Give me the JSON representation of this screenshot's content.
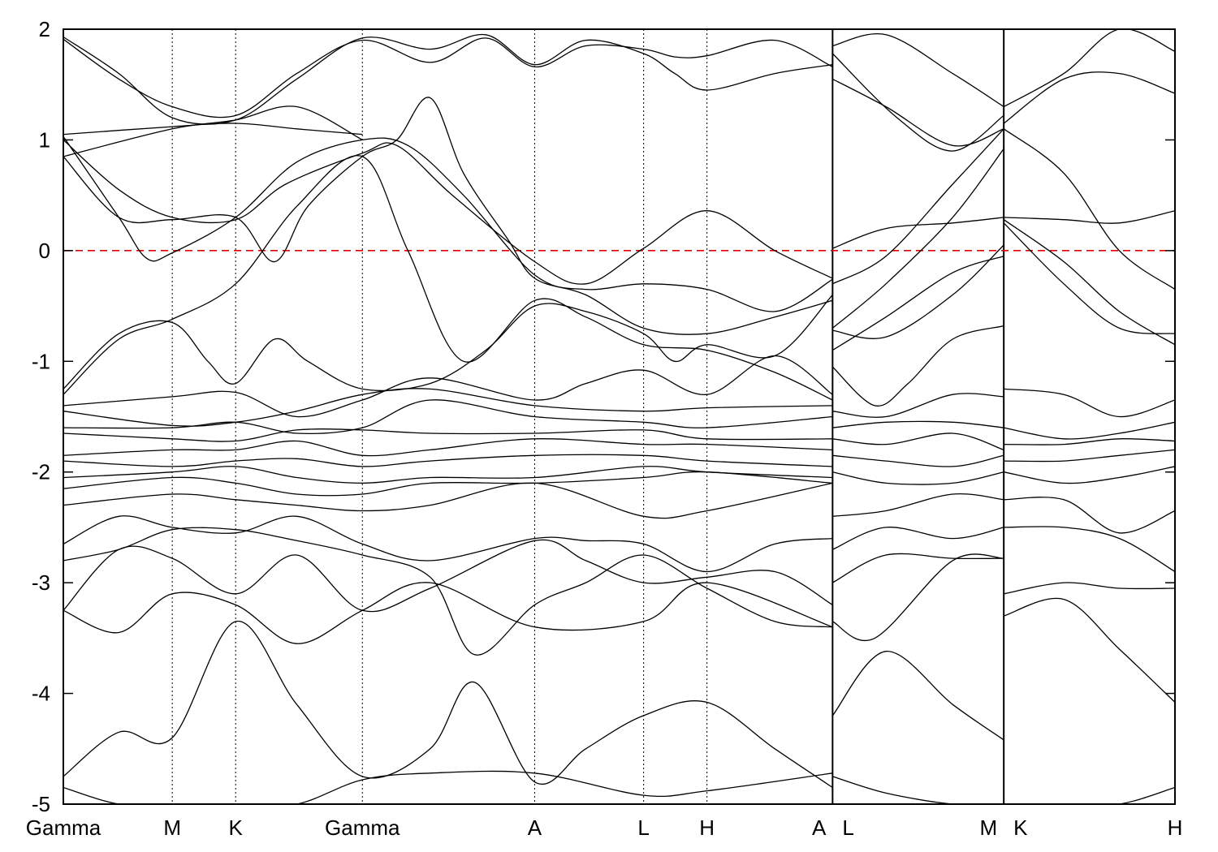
{
  "chart_data": {
    "type": "line",
    "title": "",
    "xlabel": "",
    "ylabel": "",
    "ylim": [
      -5,
      2
    ],
    "yticks": [
      -5,
      -4,
      -3,
      -2,
      -1,
      0,
      1,
      2
    ],
    "yticks_text": [
      "-5",
      "-4",
      "-3",
      "-2",
      "-1",
      "0",
      "1",
      "2"
    ],
    "xlim": [
      0,
      1
    ],
    "kpoints": [
      {
        "label": "Gamma",
        "x": 0.0
      },
      {
        "label": "M",
        "x": 0.098
      },
      {
        "label": "K",
        "x": 0.155
      },
      {
        "label": "Gamma",
        "x": 0.269
      },
      {
        "label": "A",
        "x": 0.424
      },
      {
        "label": "L",
        "x": 0.522
      },
      {
        "label": "H",
        "x": 0.579
      },
      {
        "label": "A",
        "x": 0.692
      },
      {
        "label": "L",
        "x": 0.692
      },
      {
        "label": "M",
        "x": 0.846
      },
      {
        "label": "K",
        "x": 0.846
      },
      {
        "label": "H",
        "x": 1.0
      }
    ],
    "path_breaks": [
      0.692,
      0.846
    ],
    "fermi_level": 0,
    "fermi_color": "#e00000",
    "line_color": "#000000",
    "series": [
      {
        "x": [
          0.0,
          0.05,
          0.098,
          0.155,
          0.21,
          0.269,
          0.33,
          0.38,
          0.424,
          0.47,
          0.522,
          0.55,
          0.579,
          0.64,
          0.692
        ],
        "values": [
          1.93,
          1.6,
          1.2,
          1.18,
          1.55,
          1.92,
          1.82,
          1.95,
          1.68,
          1.9,
          1.78,
          1.6,
          1.45,
          1.6,
          1.68
        ]
      },
      {
        "x": [
          0.0,
          0.05,
          0.098,
          0.155,
          0.21,
          0.269,
          0.33,
          0.38,
          0.424,
          0.47,
          0.522,
          0.55,
          0.579,
          0.64,
          0.692
        ],
        "values": [
          1.91,
          1.55,
          1.3,
          1.22,
          1.6,
          1.9,
          1.7,
          1.92,
          1.66,
          1.85,
          1.82,
          1.75,
          1.76,
          1.9,
          1.66
        ]
      },
      {
        "x": [
          0.0,
          0.098,
          0.155,
          0.21,
          0.269
        ],
        "values": [
          1.05,
          1.12,
          1.15,
          1.1,
          1.05
        ]
      },
      {
        "x": [
          0.0,
          0.098,
          0.155,
          0.21,
          0.269
        ],
        "values": [
          0.85,
          1.1,
          1.18,
          1.3,
          1.0
        ]
      },
      {
        "x": [
          0.0,
          0.05,
          0.075,
          0.098,
          0.155,
          0.21,
          0.269,
          0.31,
          0.36,
          0.424,
          0.47,
          0.522,
          0.579,
          0.64,
          0.692
        ],
        "values": [
          1.03,
          0.3,
          -0.07,
          -0.02,
          0.3,
          0.8,
          1.0,
          0.95,
          0.5,
          -0.22,
          -0.35,
          -0.3,
          -0.35,
          -0.55,
          -0.26
        ]
      },
      {
        "x": [
          0.0,
          0.05,
          0.098,
          0.155,
          0.2,
          0.269,
          0.3,
          0.35,
          0.424,
          0.47,
          0.522,
          0.579,
          0.64,
          0.692
        ],
        "values": [
          1.0,
          0.55,
          0.3,
          0.28,
          0.6,
          0.88,
          0.95,
          0.5,
          -0.1,
          -0.3,
          0.02,
          0.36,
          0.0,
          -0.25
        ]
      },
      {
        "x": [
          0.0,
          0.05,
          0.098,
          0.155,
          0.19,
          0.22,
          0.269,
          0.3,
          0.33,
          0.36,
          0.4,
          0.424,
          0.47,
          0.522,
          0.579,
          0.64,
          0.692
        ],
        "values": [
          0.85,
          0.3,
          0.28,
          0.3,
          -0.1,
          0.4,
          0.85,
          1.0,
          1.38,
          0.7,
          0.1,
          -0.25,
          -0.4,
          -0.7,
          -0.75,
          -0.6,
          -0.45
        ]
      },
      {
        "x": [
          0.0,
          0.05,
          0.098,
          0.155,
          0.21,
          0.269,
          0.31,
          0.36,
          0.424,
          0.47,
          0.522,
          0.579,
          0.64,
          0.692
        ],
        "values": [
          -1.3,
          -0.8,
          -0.62,
          -0.3,
          0.4,
          0.85,
          0.0,
          -1.0,
          -0.45,
          -0.6,
          -0.85,
          -0.9,
          -1.1,
          -1.35
        ]
      },
      {
        "x": [
          0.0,
          0.05,
          0.098,
          0.13,
          0.155,
          0.19,
          0.22,
          0.269,
          0.33,
          0.38,
          0.424,
          0.47,
          0.522,
          0.55,
          0.579,
          0.64,
          0.692
        ],
        "values": [
          -1.25,
          -0.75,
          -0.65,
          -1.0,
          -1.2,
          -0.8,
          -1.0,
          -1.25,
          -1.2,
          -0.9,
          -0.5,
          -0.55,
          -0.75,
          -1.0,
          -0.85,
          -0.95,
          -0.4
        ]
      },
      {
        "x": [
          0.0,
          0.098,
          0.155,
          0.21,
          0.269,
          0.33,
          0.424,
          0.47,
          0.522,
          0.579,
          0.64,
          0.692
        ],
        "values": [
          -1.4,
          -1.32,
          -1.28,
          -1.5,
          -1.35,
          -1.15,
          -1.35,
          -1.2,
          -1.08,
          -1.3,
          -0.95,
          -1.3
        ]
      },
      {
        "x": [
          0.0,
          0.098,
          0.155,
          0.21,
          0.269,
          0.33,
          0.424,
          0.522,
          0.579,
          0.692
        ],
        "values": [
          -1.45,
          -1.58,
          -1.55,
          -1.45,
          -1.3,
          -1.25,
          -1.4,
          -1.45,
          -1.42,
          -1.4
        ]
      },
      {
        "x": [
          0.0,
          0.098,
          0.155,
          0.21,
          0.269,
          0.33,
          0.424,
          0.522,
          0.579,
          0.692
        ],
        "values": [
          -1.6,
          -1.6,
          -1.55,
          -1.65,
          -1.6,
          -1.35,
          -1.5,
          -1.55,
          -1.6,
          -1.5
        ]
      },
      {
        "x": [
          0.0,
          0.098,
          0.155,
          0.21,
          0.269,
          0.33,
          0.424,
          0.522,
          0.579,
          0.692
        ],
        "values": [
          -1.65,
          -1.7,
          -1.72,
          -1.62,
          -1.62,
          -1.65,
          -1.65,
          -1.62,
          -1.7,
          -1.7
        ]
      },
      {
        "x": [
          0.0,
          0.098,
          0.155,
          0.21,
          0.269,
          0.33,
          0.424,
          0.522,
          0.579,
          0.692
        ],
        "values": [
          -1.85,
          -1.8,
          -1.8,
          -1.72,
          -1.85,
          -1.8,
          -1.7,
          -1.75,
          -1.75,
          -1.8
        ]
      },
      {
        "x": [
          0.0,
          0.098,
          0.155,
          0.21,
          0.269,
          0.33,
          0.424,
          0.522,
          0.579,
          0.692
        ],
        "values": [
          -1.9,
          -1.95,
          -1.9,
          -1.88,
          -1.95,
          -1.9,
          -1.85,
          -1.85,
          -1.9,
          -1.95
        ]
      },
      {
        "x": [
          0.0,
          0.098,
          0.155,
          0.21,
          0.269,
          0.33,
          0.424,
          0.522,
          0.579,
          0.692
        ],
        "values": [
          -2.05,
          -2.0,
          -1.95,
          -2.05,
          -2.1,
          -2.05,
          -2.05,
          -1.95,
          -2.0,
          -2.05
        ]
      },
      {
        "x": [
          0.0,
          0.098,
          0.155,
          0.21,
          0.269,
          0.33,
          0.424,
          0.522,
          0.579,
          0.692
        ],
        "values": [
          -2.15,
          -2.05,
          -2.1,
          -2.2,
          -2.2,
          -2.1,
          -2.1,
          -2.05,
          -2.0,
          -2.1
        ]
      },
      {
        "x": [
          0.0,
          0.098,
          0.155,
          0.21,
          0.269,
          0.33,
          0.424,
          0.522,
          0.579,
          0.692
        ],
        "values": [
          -2.3,
          -2.2,
          -2.25,
          -2.3,
          -2.35,
          -2.3,
          -2.1,
          -2.4,
          -2.35,
          -2.1
        ]
      },
      {
        "x": [
          0.0,
          0.05,
          0.098,
          0.155,
          0.21,
          0.269,
          0.33,
          0.424,
          0.47,
          0.522,
          0.579,
          0.64,
          0.692
        ],
        "values": [
          -2.65,
          -2.4,
          -2.5,
          -2.55,
          -2.4,
          -2.65,
          -2.8,
          -2.6,
          -2.62,
          -2.65,
          -2.9,
          -2.65,
          -2.6
        ]
      },
      {
        "x": [
          0.0,
          0.05,
          0.098,
          0.155,
          0.21,
          0.269,
          0.33,
          0.37,
          0.424,
          0.47,
          0.522,
          0.579,
          0.64,
          0.692
        ],
        "values": [
          -2.8,
          -2.7,
          -2.52,
          -2.52,
          -2.62,
          -2.75,
          -2.95,
          -3.65,
          -3.2,
          -3.0,
          -2.75,
          -3.05,
          -3.35,
          -3.4
        ]
      },
      {
        "x": [
          0.0,
          0.05,
          0.098,
          0.155,
          0.21,
          0.269,
          0.33,
          0.424,
          0.47,
          0.522,
          0.579,
          0.64,
          0.692
        ],
        "values": [
          -3.25,
          -2.7,
          -2.78,
          -3.1,
          -2.75,
          -3.25,
          -3.05,
          -2.62,
          -2.8,
          -3.0,
          -2.95,
          -2.9,
          -3.2
        ]
      },
      {
        "x": [
          0.0,
          0.05,
          0.098,
          0.155,
          0.21,
          0.269,
          0.33,
          0.424,
          0.522,
          0.579,
          0.692
        ],
        "values": [
          -3.25,
          -3.45,
          -3.1,
          -3.2,
          -3.55,
          -3.25,
          -3.0,
          -3.4,
          -3.35,
          -3.0,
          -3.4
        ]
      },
      {
        "x": [
          0.0,
          0.05,
          0.098,
          0.155,
          0.21,
          0.269,
          0.33,
          0.37,
          0.424,
          0.47,
          0.522,
          0.579,
          0.64,
          0.692
        ],
        "values": [
          -4.75,
          -4.35,
          -4.4,
          -3.35,
          -4.1,
          -4.75,
          -4.5,
          -3.9,
          -4.8,
          -4.5,
          -4.2,
          -4.08,
          -4.5,
          -4.85
        ]
      },
      {
        "x": [
          0.0,
          0.05,
          0.098,
          0.155,
          0.21,
          0.269,
          0.33,
          0.424,
          0.522,
          0.579,
          0.692
        ],
        "values": [
          -4.85,
          -5.0,
          -5.0,
          -5.0,
          -5.0,
          -4.78,
          -4.72,
          -4.72,
          -4.92,
          -4.88,
          -4.72
        ]
      },
      {
        "x": [
          0.692,
          0.74,
          0.8,
          0.846
        ],
        "values": [
          1.85,
          1.95,
          1.6,
          1.3
        ]
      },
      {
        "x": [
          0.692,
          0.75,
          0.8,
          0.846
        ],
        "values": [
          1.78,
          1.2,
          0.9,
          1.22
        ]
      },
      {
        "x": [
          0.692,
          0.74,
          0.8,
          0.846
        ],
        "values": [
          1.55,
          1.3,
          0.95,
          1.1
        ]
      },
      {
        "x": [
          0.692,
          0.74,
          0.8,
          0.846
        ],
        "values": [
          0.02,
          0.2,
          0.25,
          0.3
        ]
      },
      {
        "x": [
          0.692,
          0.74,
          0.8,
          0.846
        ],
        "values": [
          -0.3,
          -0.05,
          0.6,
          1.1
        ]
      },
      {
        "x": [
          0.692,
          0.74,
          0.8,
          0.846
        ],
        "values": [
          -0.7,
          -0.3,
          0.3,
          0.92
        ]
      },
      {
        "x": [
          0.692,
          0.74,
          0.8,
          0.846
        ],
        "values": [
          -0.72,
          -0.78,
          -0.4,
          0.05
        ]
      },
      {
        "x": [
          0.692,
          0.74,
          0.8,
          0.846
        ],
        "values": [
          -0.9,
          -0.6,
          -0.2,
          -0.05
        ]
      },
      {
        "x": [
          0.692,
          0.73,
          0.76,
          0.8,
          0.846
        ],
        "values": [
          -1.05,
          -1.4,
          -1.2,
          -0.8,
          -0.68
        ]
      },
      {
        "x": [
          0.692,
          0.74,
          0.8,
          0.846
        ],
        "values": [
          -1.45,
          -1.5,
          -1.3,
          -1.32
        ]
      },
      {
        "x": [
          0.692,
          0.74,
          0.8,
          0.846
        ],
        "values": [
          -1.6,
          -1.55,
          -1.55,
          -1.6
        ]
      },
      {
        "x": [
          0.692,
          0.74,
          0.8,
          0.846
        ],
        "values": [
          -1.7,
          -1.75,
          -1.65,
          -1.8
        ]
      },
      {
        "x": [
          0.692,
          0.74,
          0.8,
          0.846
        ],
        "values": [
          -1.85,
          -1.9,
          -1.95,
          -1.85
        ]
      },
      {
        "x": [
          0.692,
          0.74,
          0.8,
          0.846
        ],
        "values": [
          -2.0,
          -2.1,
          -2.1,
          -2.0
        ]
      },
      {
        "x": [
          0.692,
          0.74,
          0.8,
          0.846
        ],
        "values": [
          -2.4,
          -2.35,
          -2.2,
          -2.25
        ]
      },
      {
        "x": [
          0.692,
          0.74,
          0.8,
          0.846
        ],
        "values": [
          -2.7,
          -2.5,
          -2.6,
          -2.5
        ]
      },
      {
        "x": [
          0.692,
          0.74,
          0.8,
          0.846
        ],
        "values": [
          -3.0,
          -2.75,
          -2.78,
          -2.78
        ]
      },
      {
        "x": [
          0.692,
          0.73,
          0.8,
          0.846
        ],
        "values": [
          -3.35,
          -3.5,
          -2.8,
          -2.78
        ]
      },
      {
        "x": [
          0.692,
          0.74,
          0.8,
          0.846
        ],
        "values": [
          -4.2,
          -3.62,
          -4.1,
          -4.42
        ]
      },
      {
        "x": [
          0.692,
          0.74,
          0.8,
          0.846
        ],
        "values": [
          -4.75,
          -4.9,
          -5.0,
          -5.0
        ]
      },
      {
        "x": [
          0.846,
          0.9,
          0.95,
          1.0
        ],
        "values": [
          1.3,
          1.6,
          2.0,
          1.8
        ]
      },
      {
        "x": [
          0.846,
          0.9,
          0.95,
          1.0
        ],
        "values": [
          1.15,
          1.55,
          1.6,
          1.42
        ]
      },
      {
        "x": [
          0.846,
          0.9,
          0.95,
          1.0
        ],
        "values": [
          1.1,
          0.7,
          0.0,
          -0.35
        ]
      },
      {
        "x": [
          0.846,
          0.9,
          0.95,
          1.0
        ],
        "values": [
          0.3,
          0.28,
          0.25,
          0.36
        ]
      },
      {
        "x": [
          0.846,
          0.9,
          0.95,
          1.0
        ],
        "values": [
          0.28,
          -0.1,
          -0.55,
          -0.85
        ]
      },
      {
        "x": [
          0.846,
          0.9,
          0.95,
          1.0
        ],
        "values": [
          0.25,
          -0.3,
          -0.7,
          -0.75
        ]
      },
      {
        "x": [
          0.846,
          0.9,
          0.95,
          1.0
        ],
        "values": [
          -1.25,
          -1.3,
          -1.5,
          -1.35
        ]
      },
      {
        "x": [
          0.846,
          0.9,
          0.95,
          1.0
        ],
        "values": [
          -1.6,
          -1.7,
          -1.65,
          -1.55
        ]
      },
      {
        "x": [
          0.846,
          0.9,
          0.95,
          1.0
        ],
        "values": [
          -1.75,
          -1.75,
          -1.7,
          -1.72
        ]
      },
      {
        "x": [
          0.846,
          0.9,
          0.95,
          1.0
        ],
        "values": [
          -1.9,
          -1.9,
          -1.85,
          -1.8
        ]
      },
      {
        "x": [
          0.846,
          0.9,
          0.95,
          1.0
        ],
        "values": [
          -2.0,
          -2.1,
          -2.05,
          -1.95
        ]
      },
      {
        "x": [
          0.846,
          0.9,
          0.95,
          1.0
        ],
        "values": [
          -2.25,
          -2.25,
          -2.55,
          -2.35
        ]
      },
      {
        "x": [
          0.846,
          0.9,
          0.95,
          1.0
        ],
        "values": [
          -2.5,
          -2.5,
          -2.6,
          -2.9
        ]
      },
      {
        "x": [
          0.846,
          0.9,
          0.95,
          1.0
        ],
        "values": [
          -3.1,
          -3.0,
          -3.05,
          -3.05
        ]
      },
      {
        "x": [
          0.846,
          0.9,
          0.95,
          1.0
        ],
        "values": [
          -3.3,
          -3.15,
          -3.6,
          -4.08
        ]
      },
      {
        "x": [
          0.846,
          0.9,
          0.95,
          1.0
        ],
        "values": [
          -5.0,
          -5.0,
          -5.0,
          -4.85
        ]
      }
    ]
  }
}
